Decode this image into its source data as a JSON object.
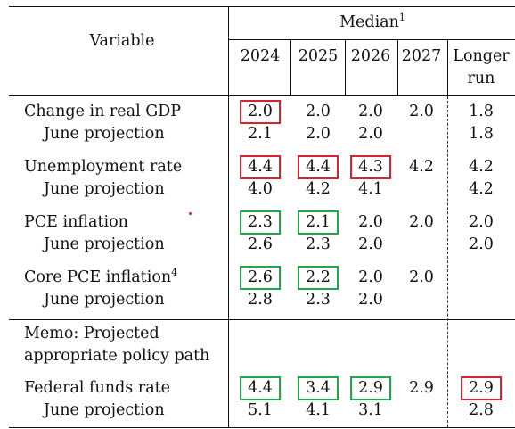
{
  "header": {
    "variable": "Variable",
    "median": "Median",
    "median_sup": "1",
    "years": [
      "2024",
      "2025",
      "2026",
      "2027"
    ],
    "longer_run": [
      "Longer",
      "run"
    ]
  },
  "rows": [
    {
      "label": "Change in real GDP",
      "sup": "",
      "values": [
        "2.0",
        "2.0",
        "2.0",
        "2.0",
        "1.8"
      ]
    },
    {
      "label": "June projection",
      "sup": "",
      "values": [
        "2.1",
        "2.0",
        "2.0",
        "",
        "1.8"
      ]
    },
    {
      "label": "Unemployment rate",
      "sup": "",
      "values": [
        "4.4",
        "4.4",
        "4.3",
        "4.2",
        "4.2"
      ]
    },
    {
      "label": "June projection",
      "sup": "",
      "values": [
        "4.0",
        "4.2",
        "4.1",
        "",
        "4.2"
      ]
    },
    {
      "label": "PCE inflation",
      "sup": "",
      "values": [
        "2.3",
        "2.1",
        "2.0",
        "2.0",
        "2.0"
      ]
    },
    {
      "label": "June projection",
      "sup": "",
      "values": [
        "2.6",
        "2.3",
        "2.0",
        "",
        "2.0"
      ]
    },
    {
      "label": "Core PCE inflation",
      "sup": "4",
      "values": [
        "2.6",
        "2.2",
        "2.0",
        "2.0",
        ""
      ]
    },
    {
      "label": "June projection",
      "sup": "",
      "values": [
        "2.8",
        "2.3",
        "2.0",
        "",
        ""
      ]
    },
    {
      "label": "Federal funds rate",
      "sup": "",
      "values": [
        "4.4",
        "3.4",
        "2.9",
        "2.9",
        "2.9"
      ]
    },
    {
      "label": "June projection",
      "sup": "",
      "values": [
        "5.1",
        "4.1",
        "3.1",
        "",
        "2.8"
      ]
    }
  ],
  "memo": [
    "Memo: Projected",
    "appropriate policy path"
  ],
  "highlights": [
    {
      "row": 0,
      "col": 0,
      "color": "#d62330"
    },
    {
      "row": 2,
      "col": 0,
      "color": "#d62330"
    },
    {
      "row": 2,
      "col": 1,
      "color": "#d62330"
    },
    {
      "row": 2,
      "col": 2,
      "color": "#d62330"
    },
    {
      "row": 4,
      "col": 0,
      "color": "#1fa84a"
    },
    {
      "row": 4,
      "col": 1,
      "color": "#1fa84a"
    },
    {
      "row": 6,
      "col": 0,
      "color": "#1fa84a"
    },
    {
      "row": 6,
      "col": 1,
      "color": "#1fa84a"
    },
    {
      "row": 8,
      "col": 0,
      "color": "#1fa84a"
    },
    {
      "row": 8,
      "col": 1,
      "color": "#1fa84a"
    },
    {
      "row": 8,
      "col": 2,
      "color": "#1fa84a"
    },
    {
      "row": 8,
      "col": 4,
      "color": "#d62330"
    }
  ]
}
